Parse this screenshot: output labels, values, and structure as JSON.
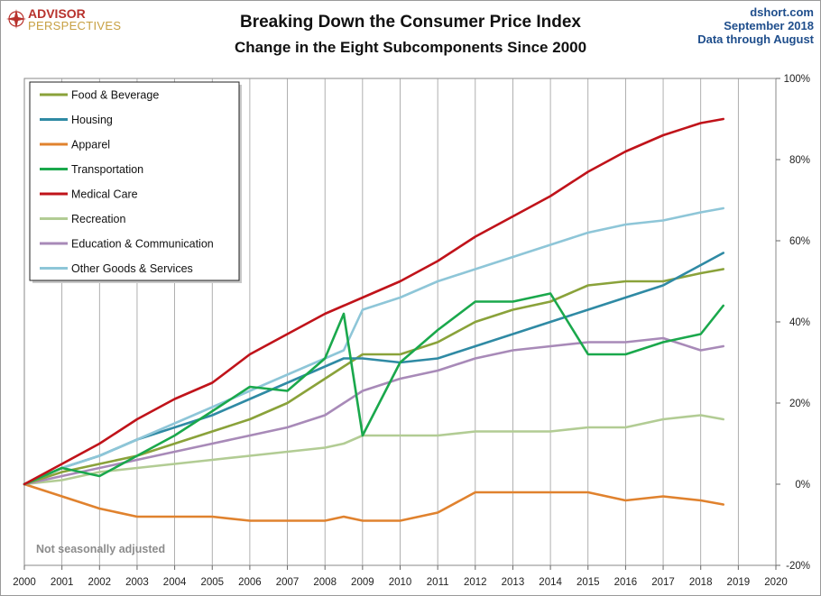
{
  "logo": {
    "line1": "ADVISOR",
    "line2": "PERSPECTIVES"
  },
  "source": {
    "site": "dshort.com",
    "date": "September 2018",
    "through": "Data through August"
  },
  "note": "Not seasonally adjusted",
  "colors": {
    "Food & Beverage": "#8aa23a",
    "Housing": "#2f8aa4",
    "Apparel": "#e0822e",
    "Transportation": "#1aa84c",
    "Medical Care": "#c0131a",
    "Recreation": "#b2cc94",
    "Education & Communication": "#a88ab8",
    "Other Goods & Services": "#8ec6d8"
  },
  "chart_data": {
    "type": "line",
    "title": "Breaking Down the Consumer Price Index",
    "subtitle": "Change in the Eight Subcomponents Since 2000",
    "xlim": [
      2000,
      2020
    ],
    "ylim": [
      -20,
      100
    ],
    "x_ticks": [
      "2000",
      "2001",
      "2002",
      "2003",
      "2004",
      "2005",
      "2006",
      "2007",
      "2008",
      "2009",
      "2010",
      "2011",
      "2012",
      "2013",
      "2014",
      "2015",
      "2016",
      "2017",
      "2018",
      "2019",
      "2020"
    ],
    "y_ticks": [
      "100%",
      "80%",
      "60%",
      "40%",
      "20%",
      "0%",
      "-20%"
    ],
    "y_tick_values": [
      100,
      80,
      60,
      40,
      20,
      0,
      -20
    ],
    "y_axis_side": "right",
    "grid": "vertical",
    "legend_position": "top-left",
    "x": [
      2000,
      2001,
      2002,
      2003,
      2004,
      2005,
      2006,
      2007,
      2008,
      2008.5,
      2009,
      2010,
      2011,
      2012,
      2013,
      2014,
      2015,
      2016,
      2017,
      2018,
      2018.6
    ],
    "series": [
      {
        "name": "Food & Beverage",
        "values": [
          0,
          3,
          5,
          7,
          10,
          13,
          16,
          20,
          26,
          29,
          32,
          32,
          35,
          40,
          43,
          45,
          49,
          50,
          50,
          52,
          53
        ]
      },
      {
        "name": "Housing",
        "values": [
          0,
          4,
          7,
          11,
          14,
          17,
          21,
          25,
          29,
          31,
          31,
          30,
          31,
          34,
          37,
          40,
          43,
          46,
          49,
          54,
          57
        ]
      },
      {
        "name": "Apparel",
        "values": [
          0,
          -3,
          -6,
          -8,
          -8,
          -8,
          -9,
          -9,
          -9,
          -8,
          -9,
          -9,
          -7,
          -2,
          -2,
          -2,
          -2,
          -4,
          -3,
          -4,
          -5
        ]
      },
      {
        "name": "Transportation",
        "values": [
          0,
          4,
          2,
          7,
          12,
          18,
          24,
          23,
          31,
          42,
          12,
          30,
          38,
          45,
          45,
          47,
          32,
          32,
          35,
          37,
          44
        ]
      },
      {
        "name": "Medical Care",
        "values": [
          0,
          5,
          10,
          16,
          21,
          25,
          32,
          37,
          42,
          44,
          46,
          50,
          55,
          61,
          66,
          71,
          77,
          82,
          86,
          89,
          90
        ]
      },
      {
        "name": "Recreation",
        "values": [
          0,
          1,
          3,
          4,
          5,
          6,
          7,
          8,
          9,
          10,
          12,
          12,
          12,
          13,
          13,
          13,
          14,
          14,
          16,
          17,
          16
        ]
      },
      {
        "name": "Education & Communication",
        "values": [
          0,
          2,
          4,
          6,
          8,
          10,
          12,
          14,
          17,
          20,
          23,
          26,
          28,
          31,
          33,
          34,
          35,
          35,
          36,
          33,
          34
        ]
      },
      {
        "name": "Other Goods & Services",
        "values": [
          0,
          4,
          7,
          11,
          15,
          19,
          23,
          27,
          31,
          33,
          43,
          46,
          50,
          53,
          56,
          59,
          62,
          64,
          65,
          67,
          68
        ]
      }
    ]
  }
}
